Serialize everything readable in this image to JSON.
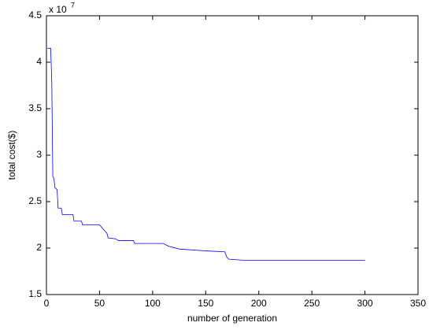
{
  "chart_data": {
    "type": "line",
    "x_label": "number of generation",
    "y_label": "total cost($)",
    "y_exponent_base": "x 10",
    "y_exponent": "7",
    "x": [
      1,
      4,
      5,
      6,
      7,
      8,
      10,
      11,
      14,
      15,
      25,
      26,
      33,
      34,
      50,
      53,
      57,
      58,
      65,
      68,
      82,
      83,
      110,
      115,
      125,
      150,
      168,
      170,
      172,
      185,
      300
    ],
    "series": [
      {
        "color": "#0000ff",
        "values": [
          4.15,
          4.15,
          3.8,
          2.77,
          2.75,
          2.65,
          2.63,
          2.43,
          2.43,
          2.36,
          2.36,
          2.29,
          2.29,
          2.25,
          2.25,
          2.21,
          2.16,
          2.11,
          2.1,
          2.08,
          2.08,
          2.05,
          2.05,
          2.02,
          1.99,
          1.97,
          1.96,
          1.9,
          1.88,
          1.87,
          1.87
        ]
      }
    ],
    "xlim": [
      0,
      350
    ],
    "xticks": [
      0,
      50,
      100,
      150,
      200,
      250,
      300,
      350
    ],
    "ylim": [
      1.5,
      4.5
    ],
    "yticks": [
      1.5,
      2,
      2.5,
      3,
      3.5,
      4,
      4.5
    ]
  }
}
